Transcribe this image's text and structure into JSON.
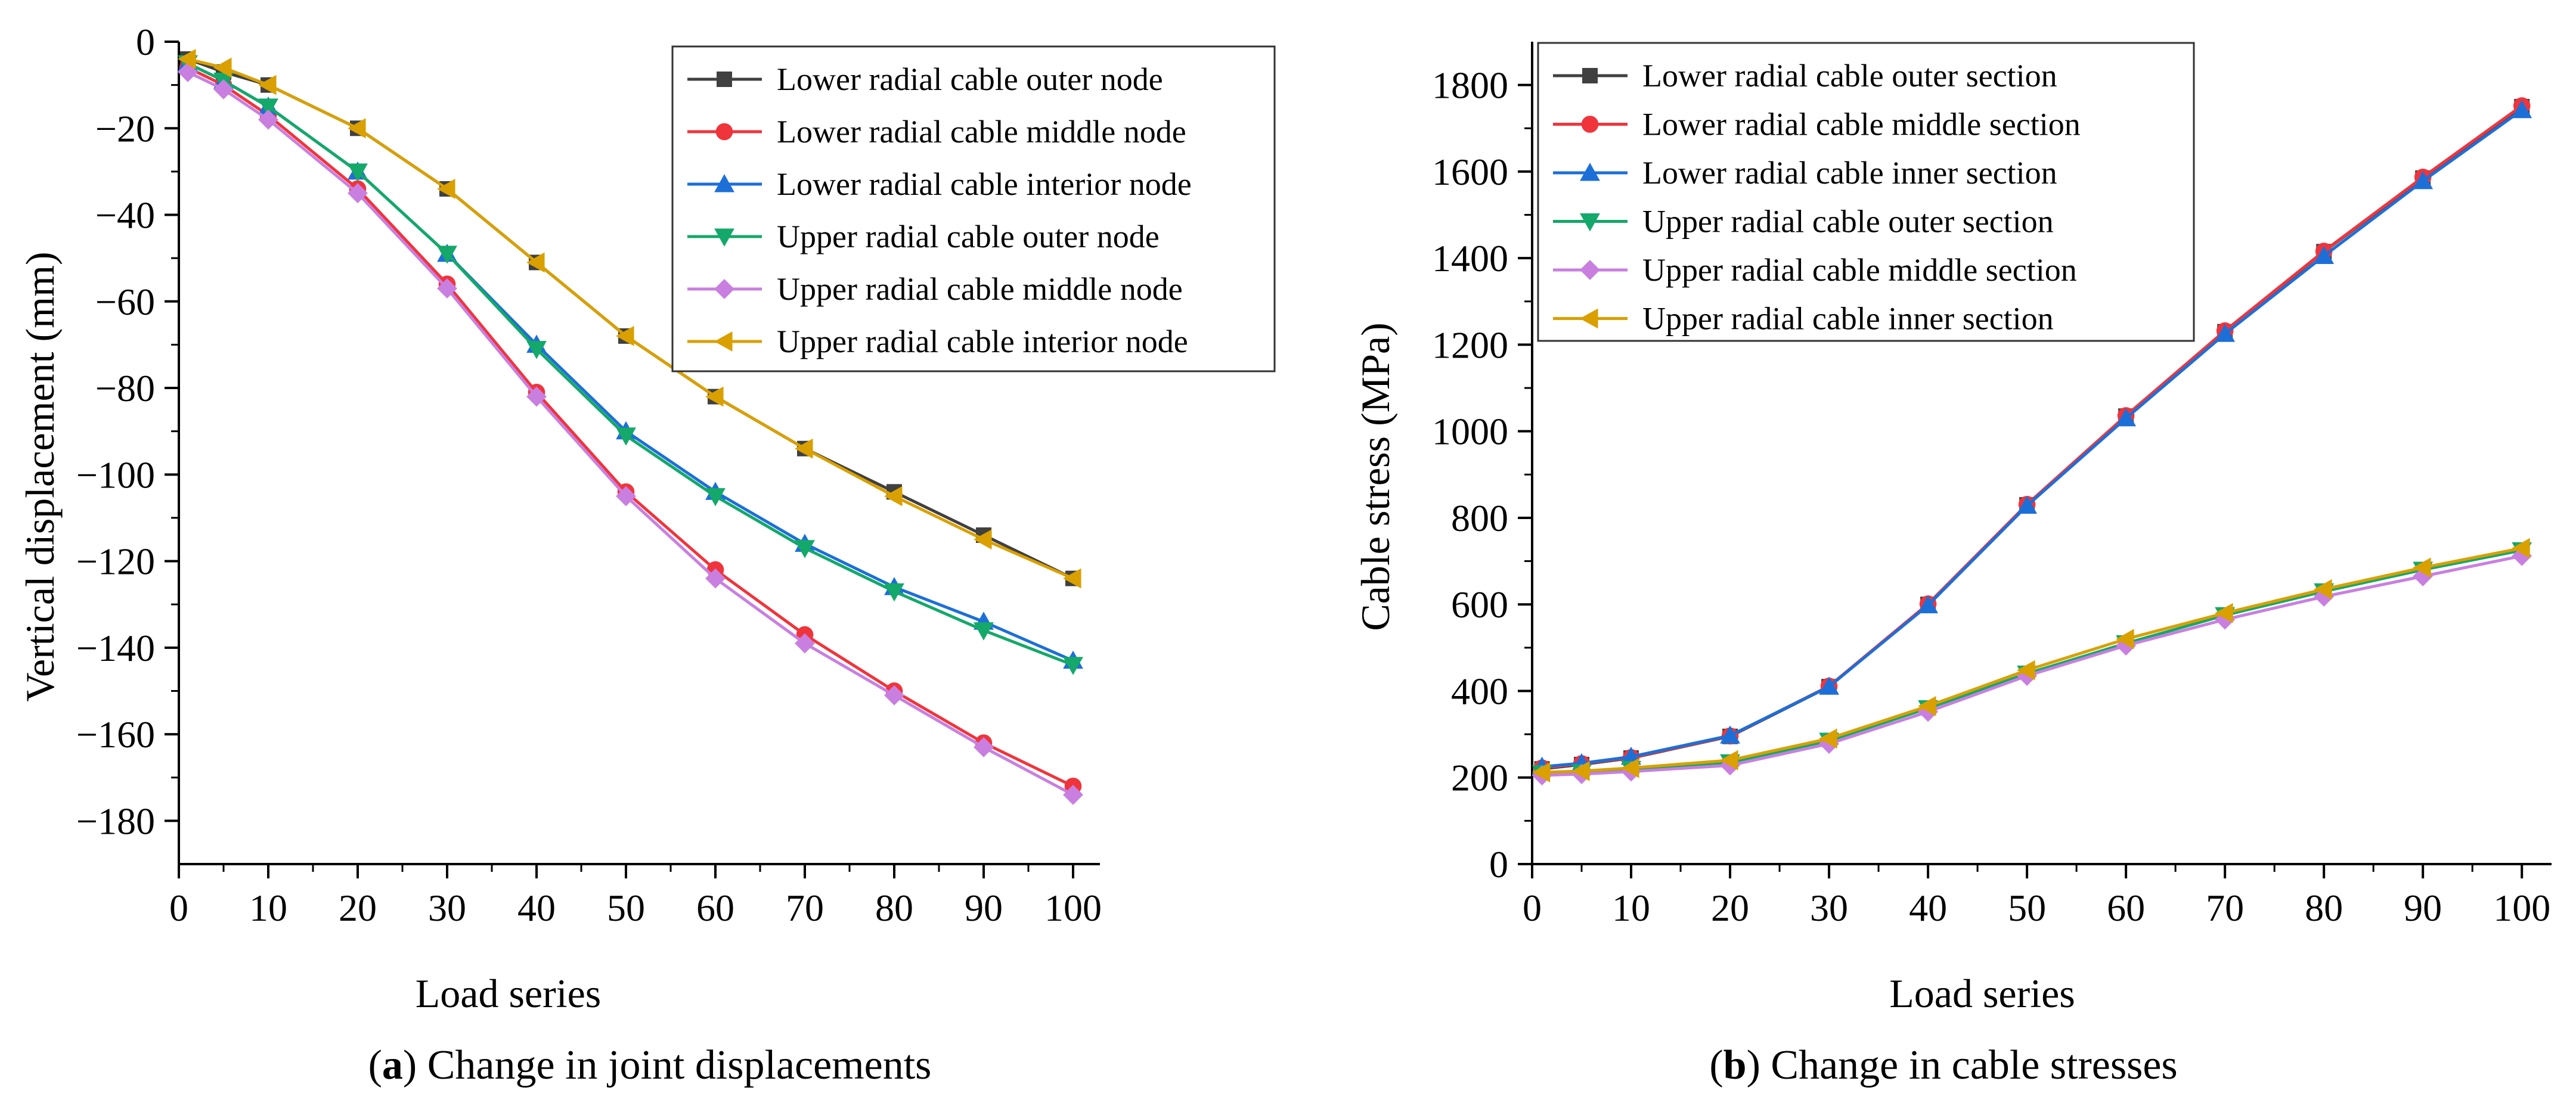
{
  "chart_data": [
    {
      "type": "line",
      "caption_bold": "a",
      "caption_rest": ") Change in joint displacements",
      "caption_open": "(",
      "xlabel": "Load series",
      "ylabel": "Vertical displacement (mm)",
      "xlim": [
        0,
        103
      ],
      "ylim": [
        -190,
        0
      ],
      "xticks": [
        0,
        10,
        20,
        30,
        40,
        50,
        60,
        70,
        80,
        90,
        100
      ],
      "yticks": [
        0,
        -20,
        -40,
        -60,
        -80,
        -100,
        -120,
        -140,
        -160,
        -180
      ],
      "ytick_labels": [
        "0",
        "−20",
        "−40",
        "−60",
        "−80",
        "−100",
        "−120",
        "−140",
        "−160",
        "−180"
      ],
      "grid": false,
      "legend_position": "top-right",
      "x": [
        1,
        5,
        10,
        20,
        30,
        40,
        50,
        60,
        70,
        80,
        90,
        100
      ],
      "series": [
        {
          "name": "Lower radial cable outer node",
          "marker": "square",
          "color": "#404040",
          "values": [
            -4,
            -7,
            -10,
            -20,
            -34,
            -51,
            -68,
            -82,
            -94,
            -104,
            -114,
            -124
          ]
        },
        {
          "name": "Lower radial cable middle node",
          "marker": "circle",
          "color": "#f0343c",
          "values": [
            -6,
            -10,
            -17,
            -34,
            -56,
            -81,
            -104,
            -122,
            -137,
            -150,
            -162,
            -172
          ]
        },
        {
          "name": "Lower radial cable interior node",
          "marker": "triangle-up",
          "color": "#1d6fd8",
          "values": [
            -5,
            -9,
            -15,
            -30,
            -49,
            -70,
            -90,
            -104,
            -116,
            -126,
            -134,
            -143
          ]
        },
        {
          "name": "Upper radial cable outer node",
          "marker": "triangle-down",
          "color": "#14a86a",
          "values": [
            -5,
            -9,
            -15,
            -30,
            -49,
            -71,
            -91,
            -105,
            -117,
            -127,
            -136,
            -144
          ]
        },
        {
          "name": "Upper radial cable middle node",
          "marker": "diamond",
          "color": "#c97fe0",
          "values": [
            -7,
            -11,
            -18,
            -35,
            -57,
            -82,
            -105,
            -124,
            -139,
            -151,
            -163,
            -174
          ]
        },
        {
          "name": "Upper radial cable interior node",
          "marker": "triangle-left",
          "color": "#d9a000",
          "values": [
            -4,
            -6,
            -10,
            -20,
            -34,
            -51,
            -68,
            -82,
            -94,
            -105,
            -115,
            -124
          ]
        }
      ]
    },
    {
      "type": "line",
      "caption_bold": "b",
      "caption_rest": ") Change in cable stresses",
      "caption_open": "(",
      "xlabel": "Load series",
      "ylabel": "Cable stress (MPa)",
      "xlim": [
        0,
        103
      ],
      "ylim": [
        0,
        1900
      ],
      "xticks": [
        0,
        10,
        20,
        30,
        40,
        50,
        60,
        70,
        80,
        90,
        100
      ],
      "yticks": [
        0,
        200,
        400,
        600,
        800,
        1000,
        1200,
        1400,
        1600,
        1800
      ],
      "ytick_labels": [
        "0",
        "200",
        "400",
        "600",
        "800",
        "1000",
        "1200",
        "1400",
        "1600",
        "1800"
      ],
      "grid": false,
      "legend_position": "top-left",
      "x": [
        1,
        5,
        10,
        20,
        30,
        40,
        50,
        60,
        70,
        80,
        90,
        100
      ],
      "series": [
        {
          "name": "Lower radial cable outer section",
          "marker": "square",
          "color": "#404040",
          "values": [
            220,
            230,
            245,
            295,
            410,
            600,
            830,
            1035,
            1230,
            1415,
            1585,
            1750
          ]
        },
        {
          "name": "Lower radial cable middle section",
          "marker": "circle",
          "color": "#f0343c",
          "values": [
            222,
            232,
            246,
            296,
            411,
            601,
            831,
            1036,
            1232,
            1416,
            1587,
            1752
          ]
        },
        {
          "name": "Lower radial cable inner section",
          "marker": "triangle-up",
          "color": "#1d6fd8",
          "values": [
            225,
            233,
            248,
            297,
            410,
            598,
            828,
            1030,
            1225,
            1405,
            1578,
            1742
          ]
        },
        {
          "name": "Upper radial cable outer section",
          "marker": "triangle-down",
          "color": "#14a86a",
          "values": [
            210,
            212,
            220,
            235,
            285,
            360,
            440,
            510,
            575,
            630,
            680,
            725
          ]
        },
        {
          "name": "Upper radial cable middle section",
          "marker": "diamond",
          "color": "#c97fe0",
          "values": [
            205,
            208,
            214,
            228,
            278,
            352,
            435,
            505,
            565,
            618,
            665,
            712
          ]
        },
        {
          "name": "Upper radial cable inner section",
          "marker": "triangle-left",
          "color": "#d9a000",
          "values": [
            212,
            215,
            222,
            240,
            290,
            365,
            448,
            520,
            580,
            635,
            685,
            730
          ]
        }
      ]
    }
  ]
}
